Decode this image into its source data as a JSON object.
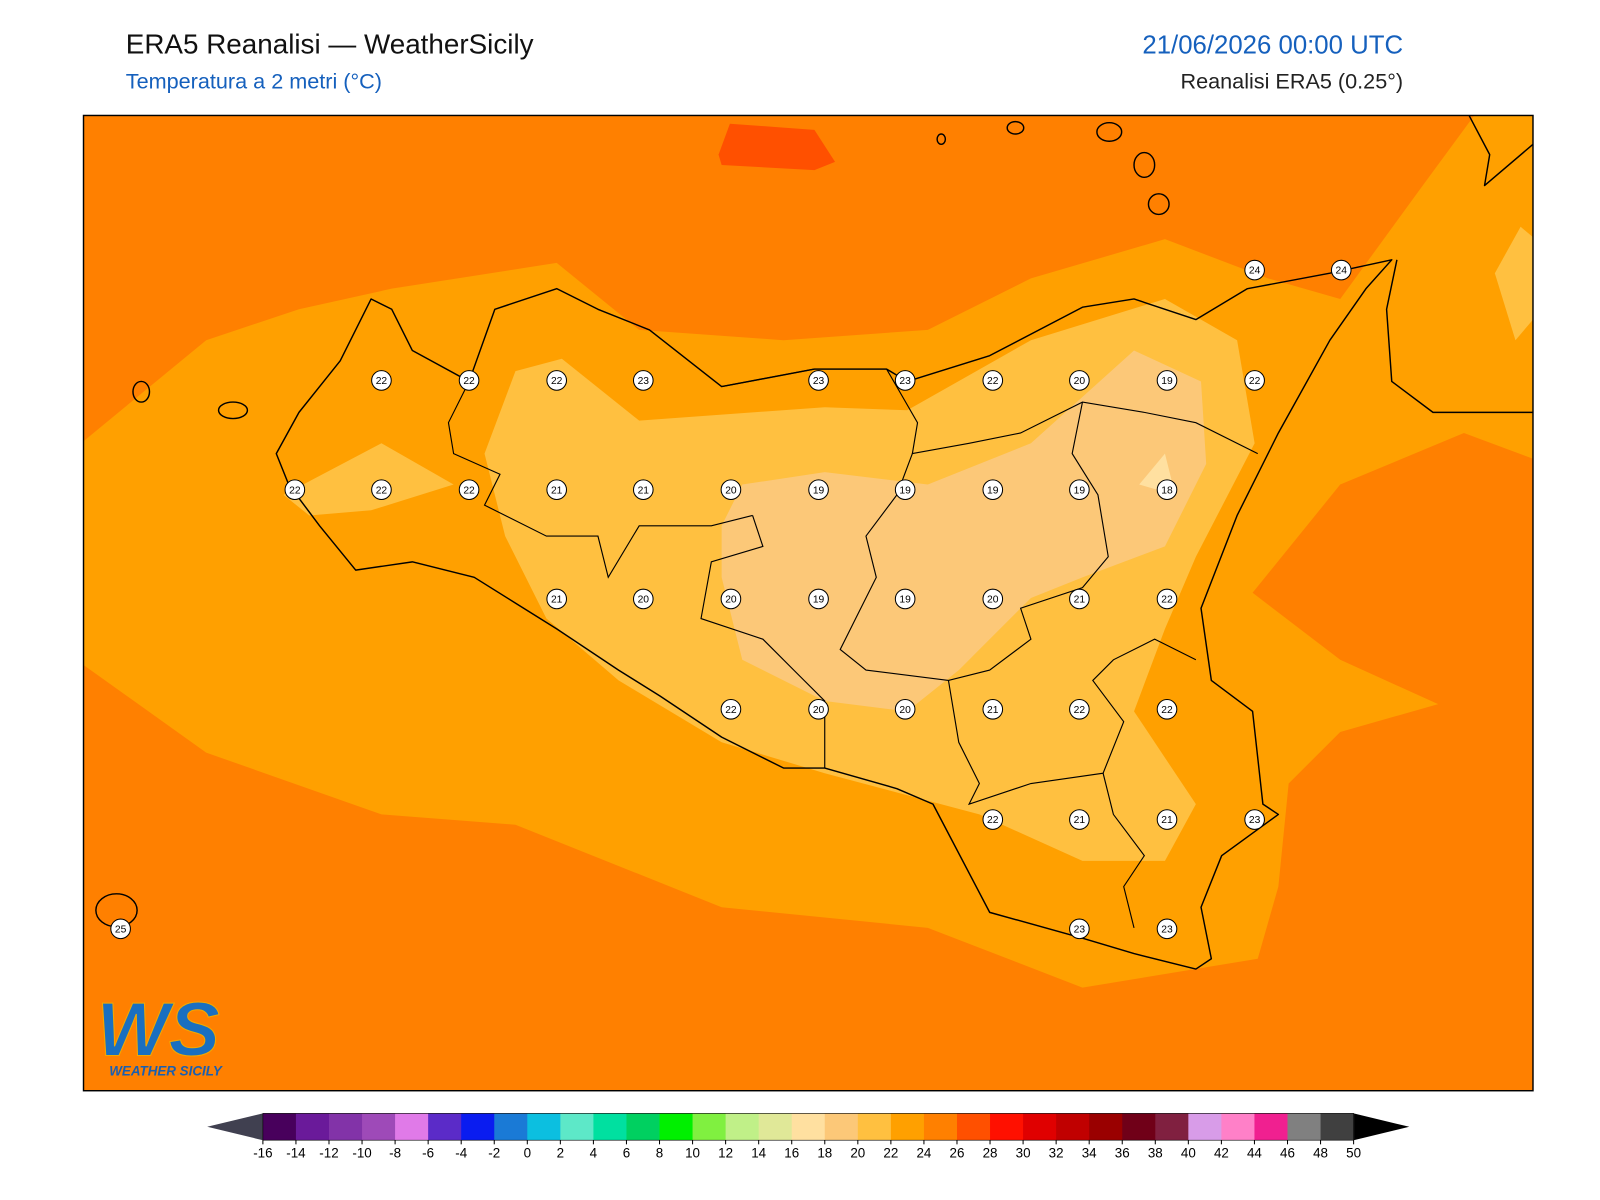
{
  "header": {
    "title": "ERA5 Reanalisi — WeatherSicily",
    "subtitle": "Temperatura a 2 metri (°C)",
    "date": "21/06/2026 00:00 UTC",
    "source": "Reanalisi ERA5 (0.25°)"
  },
  "map": {
    "station_values": [
      24,
      24,
      22,
      22,
      22,
      23,
      23,
      23,
      22,
      20,
      19,
      22,
      22,
      22,
      22,
      21,
      21,
      20,
      19,
      19,
      19,
      19,
      18,
      21,
      20,
      20,
      19,
      19,
      20,
      21,
      22,
      22,
      20,
      20,
      21,
      22,
      22,
      22,
      21,
      21,
      23,
      25,
      23,
      23
    ]
  },
  "logo": {
    "letters": "WS",
    "name": "WEATHER SICILY"
  },
  "colorbar": {
    "ticks": [
      -16,
      -14,
      -12,
      -10,
      -8,
      -6,
      -4,
      -2,
      0,
      2,
      4,
      6,
      8,
      10,
      12,
      14,
      16,
      18,
      20,
      22,
      24,
      26,
      28,
      30,
      32,
      34,
      36,
      38,
      40,
      42,
      44,
      46,
      48,
      50
    ],
    "colors": [
      "#48005c",
      "#6a1a9a",
      "#8233a8",
      "#9e4ab8",
      "#e07ae8",
      "#5b2bc8",
      "#0a1cf0",
      "#1a7ad6",
      "#0cbfe0",
      "#5de8c8",
      "#00e0a0",
      "#00d060",
      "#00f000",
      "#80f040",
      "#c0f088",
      "#e0e898",
      "#ffe0a0",
      "#fcc878",
      "#ffc040",
      "#ffa000",
      "#ff8000",
      "#ff5000",
      "#ff1000",
      "#e00000",
      "#c00000",
      "#9a0000",
      "#700018",
      "#802040",
      "#d89ce8",
      "#ff80c8",
      "#f02090",
      "#808080",
      "#404040"
    ],
    "under_color": "#404050",
    "over_color": "#000000"
  }
}
